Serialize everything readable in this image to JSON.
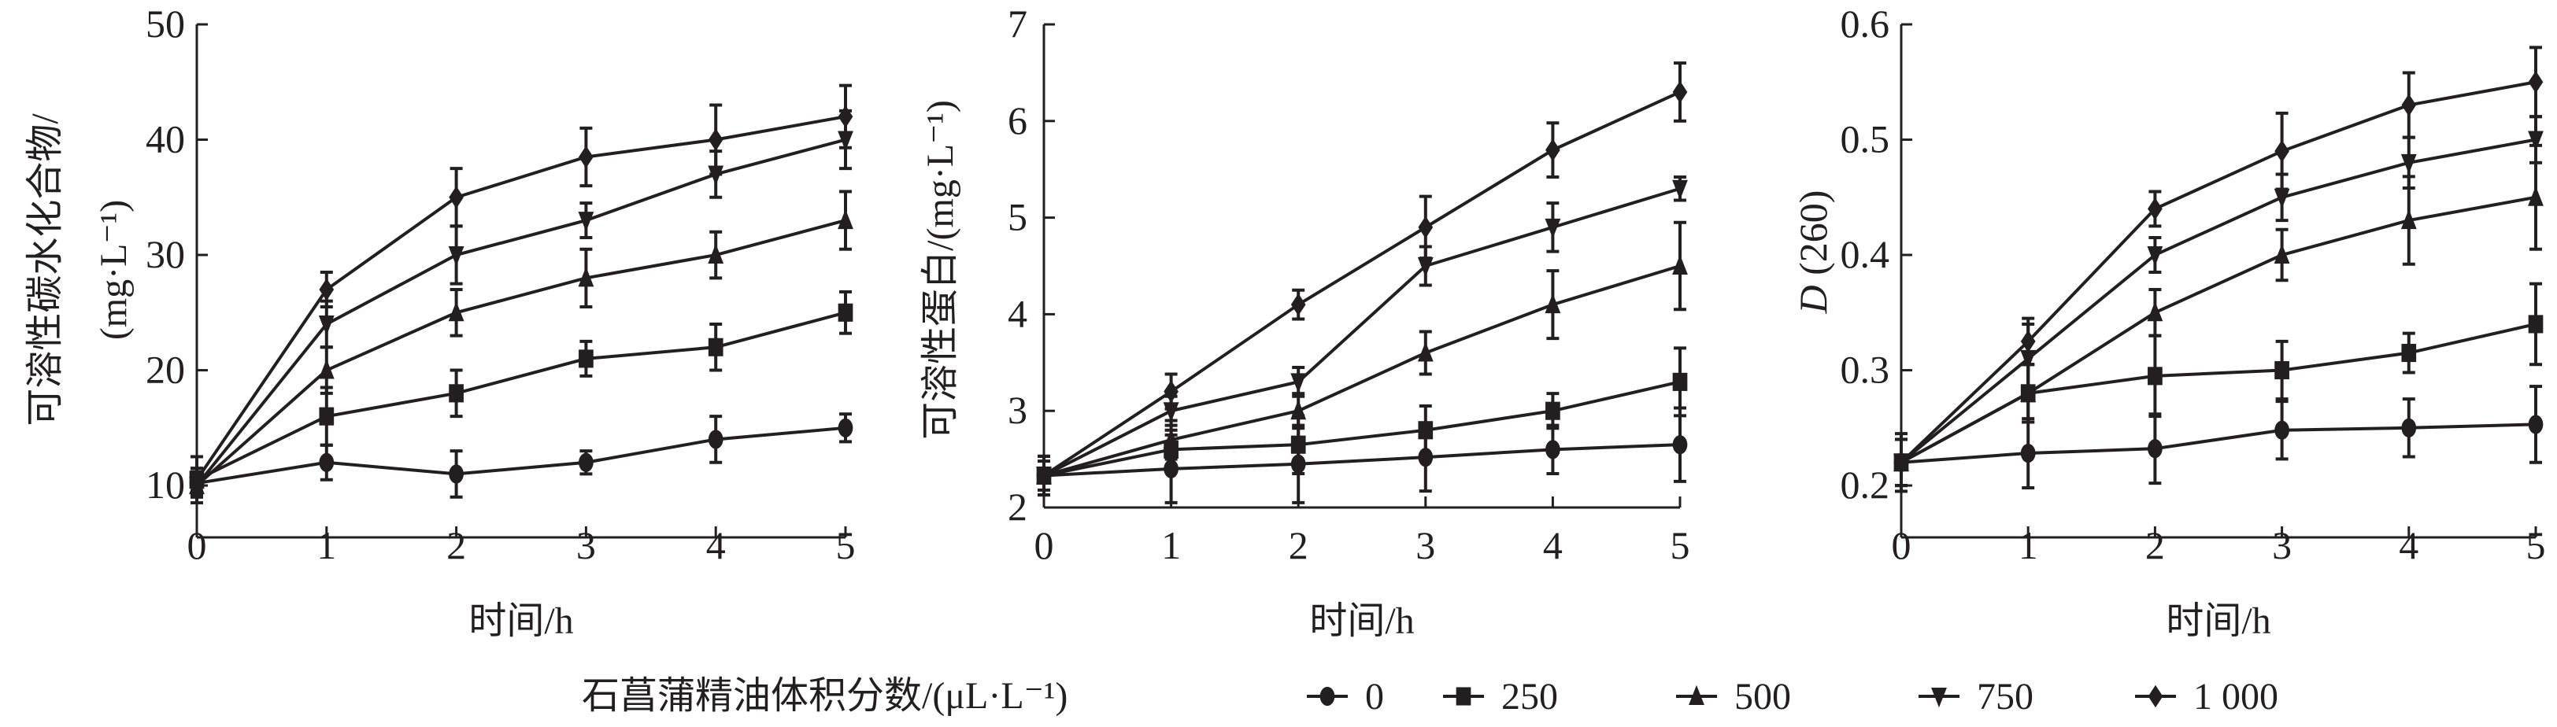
{
  "chart_data": [
    {
      "type": "line",
      "ylabel": [
        "可溶性碳水化合物/",
        "(mg·L⁻¹)"
      ],
      "xlabel": "时间/h",
      "x": [
        0,
        1,
        2,
        3,
        4,
        5
      ],
      "xticks": [
        "0",
        "1",
        "2",
        "3",
        "4",
        "5"
      ],
      "yticks": [
        "10",
        "20",
        "30",
        "40",
        "50"
      ],
      "ytick_values": [
        10,
        20,
        30,
        40,
        50
      ],
      "ylim": [
        5.5,
        50
      ],
      "error_bars": true,
      "series": [
        {
          "name": "0",
          "marker": "circle",
          "values": [
            10.2,
            12,
            11,
            12,
            14,
            15
          ],
          "errors": [
            1,
            1.5,
            2,
            1,
            2,
            1.2
          ]
        },
        {
          "name": "250",
          "marker": "square",
          "values": [
            10.5,
            16,
            18,
            21,
            22,
            25
          ],
          "errors": [
            2,
            2.5,
            2,
            1.5,
            2,
            1.8
          ]
        },
        {
          "name": "500",
          "marker": "triangle-up",
          "values": [
            10,
            20,
            25,
            28,
            30,
            33
          ],
          "errors": [
            1,
            2,
            2,
            2.5,
            2,
            2.5
          ]
        },
        {
          "name": "750",
          "marker": "triangle-down",
          "values": [
            10,
            24,
            30,
            33,
            37,
            40
          ],
          "errors": [
            1,
            2,
            2.5,
            1.5,
            2,
            2.5
          ]
        },
        {
          "name": "1 000",
          "marker": "diamond",
          "values": [
            10.5,
            27,
            35,
            38.5,
            40,
            42
          ],
          "errors": [
            1,
            1.5,
            2.5,
            2.5,
            3,
            2.7
          ]
        }
      ]
    },
    {
      "type": "line",
      "ylabel": [
        "可溶性蛋白/(mg·L⁻¹)"
      ],
      "xlabel": "时间/h",
      "x": [
        0,
        1,
        2,
        3,
        4,
        5
      ],
      "xticks": [
        "0",
        "1",
        "2",
        "3",
        "4",
        "5"
      ],
      "yticks": [
        "2",
        "3",
        "4",
        "5",
        "6",
        "7"
      ],
      "ytick_values": [
        2,
        3,
        4,
        5,
        6,
        7
      ],
      "ylim": [
        2,
        7
      ],
      "error_bars": true,
      "series": [
        {
          "name": "0",
          "marker": "circle",
          "values": [
            2.33,
            2.4,
            2.45,
            2.52,
            2.6,
            2.65
          ],
          "errors": [
            0.2,
            0.35,
            0.4,
            0.35,
            0.25,
            0.38
          ]
        },
        {
          "name": "250",
          "marker": "square",
          "values": [
            2.33,
            2.6,
            2.65,
            2.8,
            3.0,
            3.3
          ],
          "errors": [
            0.2,
            0.2,
            0.3,
            0.25,
            0.18,
            0.35
          ]
        },
        {
          "name": "500",
          "marker": "triangle-up",
          "values": [
            2.33,
            2.7,
            3.0,
            3.6,
            4.1,
            4.5
          ],
          "errors": [
            0.2,
            0.2,
            0.18,
            0.22,
            0.35,
            0.45
          ]
        },
        {
          "name": "750",
          "marker": "triangle-down",
          "values": [
            2.33,
            3.0,
            3.3,
            4.5,
            4.9,
            5.3
          ],
          "errors": [
            0.15,
            0.15,
            0.15,
            0.2,
            0.25,
            0.12
          ]
        },
        {
          "name": "1 000",
          "marker": "diamond",
          "values": [
            2.33,
            3.2,
            4.1,
            4.9,
            5.7,
            6.3
          ],
          "errors": [
            0.2,
            0.18,
            0.15,
            0.32,
            0.28,
            0.3
          ]
        }
      ]
    },
    {
      "type": "line",
      "ylabel": [
        "D",
        " (260)"
      ],
      "xlabel": "时间/h",
      "x": [
        0,
        1,
        2,
        3,
        4,
        5
      ],
      "xticks": [
        "0",
        "1",
        "2",
        "3",
        "4",
        "5"
      ],
      "yticks": [
        "0.2",
        "0.3",
        "0.4",
        "0.5",
        "0.6"
      ],
      "ytick_values": [
        0.2,
        0.3,
        0.4,
        0.5,
        0.6
      ],
      "ylim": [
        0.155,
        0.6
      ],
      "error_bars": true,
      "series": [
        {
          "name": "0",
          "marker": "circle",
          "values": [
            0.22,
            0.228,
            0.232,
            0.248,
            0.25,
            0.253
          ],
          "errors": [
            0.02,
            0.03,
            0.03,
            0.025,
            0.025,
            0.033
          ]
        },
        {
          "name": "250",
          "marker": "square",
          "values": [
            0.22,
            0.28,
            0.295,
            0.3,
            0.315,
            0.34
          ],
          "errors": [
            0.025,
            0.025,
            0.035,
            0.025,
            0.017,
            0.035
          ]
        },
        {
          "name": "500",
          "marker": "triangle-up",
          "values": [
            0.22,
            0.28,
            0.35,
            0.4,
            0.43,
            0.45
          ],
          "errors": [
            0.02,
            0.025,
            0.02,
            0.022,
            0.038,
            0.045
          ]
        },
        {
          "name": "750",
          "marker": "triangle-down",
          "values": [
            0.22,
            0.31,
            0.4,
            0.45,
            0.48,
            0.5
          ],
          "errors": [
            0.02,
            0.03,
            0.015,
            0.02,
            0.022,
            0.02
          ]
        },
        {
          "name": "1 000",
          "marker": "diamond",
          "values": [
            0.22,
            0.325,
            0.44,
            0.49,
            0.53,
            0.55
          ],
          "errors": [
            0.02,
            0.02,
            0.015,
            0.033,
            0.028,
            0.03
          ]
        }
      ]
    }
  ],
  "legend": {
    "title": "石菖蒲精油体积分数/(μL·L⁻¹)",
    "position": "bottom",
    "items": [
      {
        "label": "0",
        "marker": "circle"
      },
      {
        "label": "250",
        "marker": "square"
      },
      {
        "label": "500",
        "marker": "triangle-up"
      },
      {
        "label": "750",
        "marker": "triangle-down"
      },
      {
        "label": "1 000",
        "marker": "diamond"
      }
    ]
  },
  "colors": {
    "ink": "#231f20",
    "background": "#ffffff"
  }
}
